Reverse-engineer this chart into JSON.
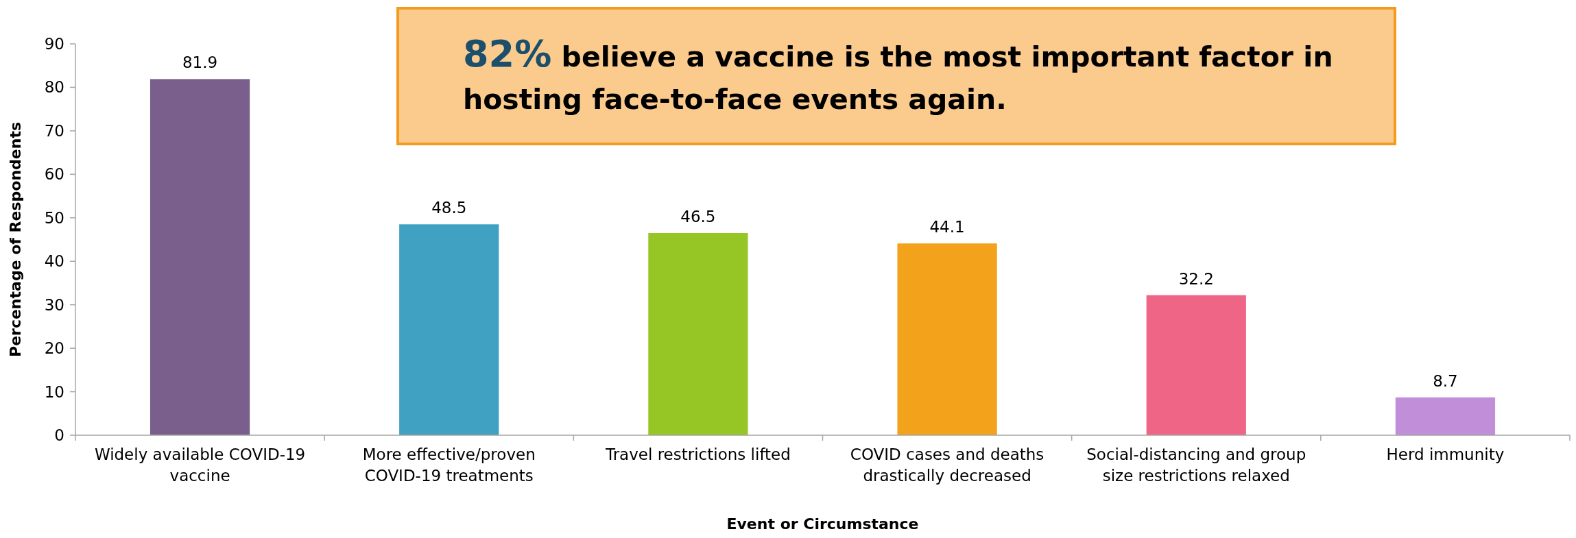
{
  "chart_data": {
    "type": "bar",
    "xlabel": "Event or Circumstance",
    "ylabel": "Percentage of Respondents",
    "categories": [
      "Widely available COVID-19 vaccine",
      "More effective/proven COVID-19 treatments",
      "Travel restrictions lifted",
      "COVID cases and deaths drastically decreased",
      "Social-distancing and group size restrictions relaxed",
      "Herd immunity"
    ],
    "values": [
      81.9,
      48.5,
      46.5,
      44.1,
      32.2,
      8.7
    ],
    "colors": [
      "#7a5f8c",
      "#40a1c2",
      "#95c625",
      "#f3a31b",
      "#ef6585",
      "#c18fd9"
    ],
    "ylim": [
      0,
      90
    ],
    "yticks": [
      0,
      10,
      20,
      30,
      40,
      50,
      60,
      70,
      80,
      90
    ],
    "grid": false,
    "data_labels": true,
    "annotations": [
      "82% believe a vaccine is the most important factor in hosting face-to-face events again."
    ]
  }
}
